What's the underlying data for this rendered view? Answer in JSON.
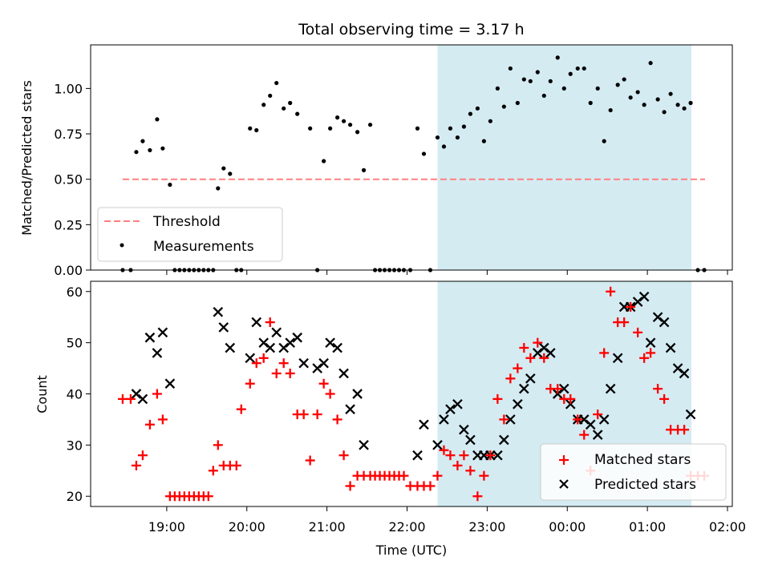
{
  "figure": {
    "title": "Total observing time = 3.17 h",
    "xlabel": "Time (UTC)",
    "x_ticks": [
      "19:00",
      "20:00",
      "21:00",
      "22:00",
      "23:00",
      "00:00",
      "01:00",
      "02:00"
    ],
    "span_color": "#add8e6"
  },
  "chart_data": [
    {
      "type": "scatter",
      "panel": "top",
      "ylabel": "Matched/Predicted stars",
      "ylim": [
        0,
        1.24
      ],
      "y_ticks": [
        "0.00",
        "0.25",
        "0.50",
        "0.75",
        "1.00"
      ],
      "shaded_interval_hours": [
        22.38,
        25.55
      ],
      "legend": {
        "placement": "lower-left",
        "entries": [
          "Threshold",
          "Measurements"
        ]
      },
      "threshold": {
        "name": "Threshold",
        "value": 0.5,
        "x_range_hours": [
          18.45,
          25.72
        ],
        "color": "#ff8080",
        "style": "dashed"
      },
      "measurements": {
        "name": "Measurements",
        "color": "#000000",
        "x_hours": [
          18.45,
          18.55,
          18.62,
          18.7,
          18.79,
          18.88,
          18.95,
          19.04,
          19.1,
          19.16,
          19.22,
          19.28,
          19.34,
          19.4,
          19.46,
          19.52,
          19.58,
          19.64,
          19.71,
          19.79,
          19.87,
          19.93,
          20.04,
          20.12,
          20.21,
          20.29,
          20.37,
          20.46,
          20.54,
          20.63,
          20.79,
          20.88,
          20.96,
          21.04,
          21.13,
          21.21,
          21.29,
          21.38,
          21.46,
          21.54,
          21.6,
          21.66,
          21.72,
          21.78,
          21.84,
          21.9,
          21.96,
          22.04,
          22.13,
          22.21,
          22.29,
          22.38,
          22.46,
          22.54,
          22.63,
          22.71,
          22.79,
          22.88,
          22.96,
          23.04,
          23.13,
          23.21,
          23.29,
          23.38,
          23.46,
          23.54,
          23.63,
          23.71,
          23.79,
          23.88,
          23.96,
          24.04,
          24.13,
          24.21,
          24.29,
          24.38,
          24.46,
          24.54,
          24.63,
          24.71,
          24.79,
          24.88,
          24.96,
          25.04,
          25.13,
          25.21,
          25.29,
          25.38,
          25.46,
          25.54,
          25.63,
          25.71
        ],
        "y": [
          0,
          0,
          0.65,
          0.71,
          0.66,
          0.83,
          0.67,
          0.47,
          0,
          0,
          0,
          0,
          0,
          0,
          0,
          0,
          0,
          0.45,
          0.56,
          0.53,
          0,
          0,
          0.78,
          0.77,
          0.91,
          0.96,
          1.03,
          0.89,
          0.92,
          0.86,
          0.78,
          0,
          0.6,
          0.78,
          0.84,
          0.82,
          0.8,
          0.76,
          0.55,
          0.8,
          0,
          0,
          0,
          0,
          0,
          0,
          0,
          0,
          0.78,
          0.64,
          0,
          0.73,
          0.68,
          0.78,
          0.73,
          0.79,
          0.86,
          0.89,
          0.71,
          0.82,
          1.0,
          0.9,
          1.11,
          0.92,
          1.05,
          1.04,
          1.09,
          0.96,
          1.04,
          1.17,
          1.0,
          1.08,
          1.11,
          1.11,
          0.92,
          1.0,
          0.71,
          0.88,
          1.02,
          1.05,
          0.95,
          0.98,
          0.91,
          1.14,
          0.94,
          0.87,
          0.97,
          0.91,
          0.89,
          0.92,
          0,
          0
        ]
      }
    },
    {
      "type": "scatter",
      "panel": "bottom",
      "ylabel": "Count",
      "ylim": [
        18,
        62
      ],
      "y_ticks": [
        "20",
        "30",
        "40",
        "50",
        "60"
      ],
      "shaded_interval_hours": [
        22.38,
        25.55
      ],
      "legend": {
        "placement": "lower-right",
        "entries": [
          "Matched stars",
          "Predicted stars"
        ]
      },
      "series": [
        {
          "name": "Matched stars",
          "marker": "plus",
          "color": "#ff0000",
          "x_hours": [
            18.45,
            18.55,
            18.62,
            18.7,
            18.79,
            18.88,
            18.95,
            19.04,
            19.1,
            19.16,
            19.22,
            19.28,
            19.34,
            19.4,
            19.46,
            19.52,
            19.58,
            19.64,
            19.71,
            19.79,
            19.87,
            19.93,
            20.04,
            20.12,
            20.21,
            20.29,
            20.37,
            20.46,
            20.54,
            20.63,
            20.71,
            20.79,
            20.88,
            20.96,
            21.04,
            21.13,
            21.21,
            21.29,
            21.38,
            21.46,
            21.54,
            21.6,
            21.66,
            21.72,
            21.78,
            21.84,
            21.9,
            21.96,
            22.04,
            22.13,
            22.21,
            22.29,
            22.38,
            22.46,
            22.54,
            22.63,
            22.71,
            22.79,
            22.88,
            22.96,
            23.04,
            23.13,
            23.21,
            23.29,
            23.38,
            23.46,
            23.54,
            23.63,
            23.71,
            23.79,
            23.88,
            23.96,
            24.04,
            24.13,
            24.21,
            24.29,
            24.38,
            24.46,
            24.54,
            24.63,
            24.71,
            24.79,
            24.88,
            24.96,
            25.04,
            25.13,
            25.21,
            25.29,
            25.38,
            25.46,
            25.54,
            25.63,
            25.71
          ],
          "y": [
            39,
            39,
            26,
            28,
            34,
            40,
            35,
            20,
            20,
            20,
            20,
            20,
            20,
            20,
            20,
            20,
            25,
            30,
            26,
            26,
            26,
            37,
            42,
            46,
            47,
            54,
            44,
            46,
            44,
            36,
            36,
            27,
            36,
            42,
            40,
            35,
            28,
            22,
            24,
            24,
            24,
            24,
            24,
            24,
            24,
            24,
            24,
            24,
            22,
            22,
            22,
            22,
            24,
            29,
            28,
            26,
            28,
            25,
            20,
            24,
            28,
            39,
            35,
            43,
            45,
            49,
            47,
            50,
            47,
            41,
            41,
            39,
            39,
            35,
            32,
            25,
            36,
            48,
            60,
            54,
            54,
            57,
            52,
            47,
            48,
            41,
            39,
            33,
            33,
            33,
            24,
            24,
            24
          ]
        },
        {
          "name": "Predicted stars",
          "marker": "x",
          "color": "#000000",
          "x_hours": [
            18.62,
            18.7,
            18.79,
            18.88,
            18.95,
            19.04,
            19.64,
            19.71,
            19.79,
            20.04,
            20.12,
            20.21,
            20.29,
            20.37,
            20.46,
            20.54,
            20.63,
            20.71,
            20.88,
            20.96,
            21.04,
            21.13,
            21.21,
            21.29,
            21.38,
            21.46,
            22.13,
            22.21,
            22.38,
            22.46,
            22.54,
            22.63,
            22.71,
            22.79,
            22.88,
            22.96,
            23.04,
            23.13,
            23.21,
            23.29,
            23.38,
            23.46,
            23.54,
            23.63,
            23.71,
            23.79,
            23.88,
            23.96,
            24.04,
            24.13,
            24.21,
            24.29,
            24.38,
            24.46,
            24.54,
            24.63,
            24.71,
            24.79,
            24.88,
            24.96,
            25.04,
            25.13,
            25.21,
            25.29,
            25.38,
            25.46,
            25.54
          ],
          "y": [
            40,
            39,
            51,
            48,
            52,
            42,
            56,
            53,
            49,
            47,
            54,
            50,
            49,
            52,
            49,
            50,
            51,
            46,
            45,
            46,
            50,
            49,
            44,
            37,
            40,
            30,
            28,
            34,
            30,
            35,
            37,
            38,
            33,
            31,
            28,
            28,
            28,
            28,
            31,
            35,
            38,
            41,
            43,
            48,
            49,
            48,
            40,
            41,
            38,
            35,
            35,
            34,
            32,
            35,
            41,
            47,
            57,
            57,
            58,
            59,
            50,
            55,
            54,
            49,
            45,
            44,
            36
          ]
        }
      ]
    }
  ]
}
